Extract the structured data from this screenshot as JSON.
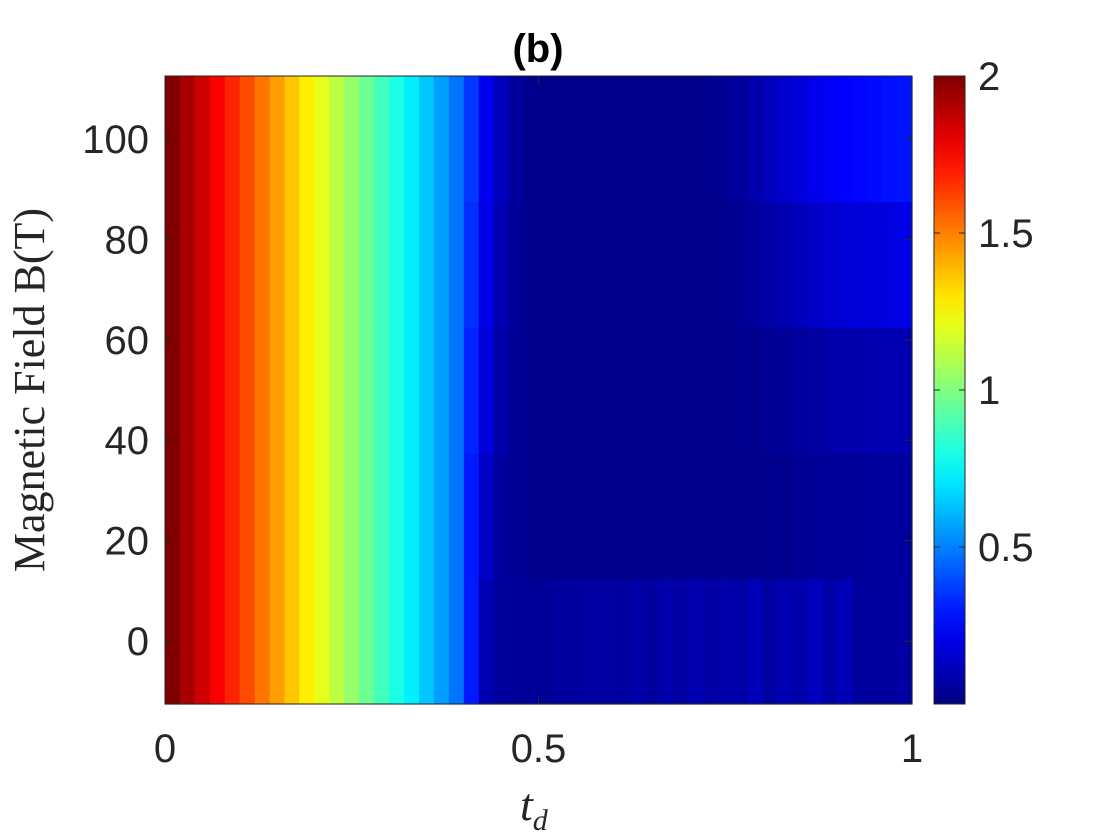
{
  "chart_data": {
    "type": "heatmap",
    "title": "(b)",
    "xlabel": "t_d",
    "xlabel_main": "t",
    "xlabel_sub": "d",
    "ylabel": "Magnetic Field B(T)",
    "xlim": [
      0,
      1
    ],
    "ylim": [
      -12.5,
      112.5
    ],
    "x_ticks": [
      0,
      0.5,
      1
    ],
    "x_tick_labels": [
      "0",
      "0.5",
      "1"
    ],
    "y_ticks": [
      0,
      20,
      40,
      60,
      80,
      100
    ],
    "y_tick_labels": [
      "0",
      "20",
      "40",
      "60",
      "80",
      "100"
    ],
    "colormap": "jet",
    "clim": [
      0,
      2
    ],
    "colorbar_ticks": [
      0.5,
      1,
      1.5,
      2
    ],
    "colorbar_tick_labels": [
      "0.5",
      "1",
      "1.5",
      "2"
    ],
    "y_rows": [
      0,
      25,
      50,
      75,
      100
    ],
    "x_columns_count": 50,
    "z_rows": [
      [
        2.0,
        1.92,
        1.84,
        1.76,
        1.68,
        1.6,
        1.52,
        1.44,
        1.36,
        1.28,
        1.2,
        1.12,
        1.04,
        0.96,
        0.88,
        0.8,
        0.72,
        0.64,
        0.56,
        0.48,
        0.3,
        0.1,
        0.06,
        0.05,
        0.05,
        0.05,
        0.06,
        0.06,
        0.07,
        0.07,
        0.06,
        0.08,
        0.06,
        0.09,
        0.07,
        0.1,
        0.07,
        0.09,
        0.08,
        0.11,
        0.07,
        0.1,
        0.09,
        0.12,
        0.08,
        0.11,
        0.06,
        0.06,
        0.06,
        0.07
      ],
      [
        2.0,
        1.92,
        1.84,
        1.76,
        1.68,
        1.6,
        1.52,
        1.44,
        1.36,
        1.28,
        1.2,
        1.12,
        1.04,
        0.96,
        0.88,
        0.8,
        0.72,
        0.64,
        0.56,
        0.48,
        0.3,
        0.14,
        0.06,
        0.04,
        0.03,
        0.02,
        0.02,
        0.02,
        0.02,
        0.02,
        0.02,
        0.02,
        0.02,
        0.02,
        0.02,
        0.02,
        0.02,
        0.02,
        0.02,
        0.02,
        0.03,
        0.03,
        0.04,
        0.04,
        0.05,
        0.05,
        0.05,
        0.06,
        0.06,
        0.06
      ],
      [
        2.0,
        1.92,
        1.84,
        1.76,
        1.68,
        1.6,
        1.52,
        1.44,
        1.36,
        1.28,
        1.2,
        1.12,
        1.04,
        0.96,
        0.88,
        0.8,
        0.72,
        0.64,
        0.56,
        0.48,
        0.32,
        0.18,
        0.08,
        0.04,
        0.03,
        0.02,
        0.02,
        0.02,
        0.02,
        0.02,
        0.02,
        0.02,
        0.02,
        0.02,
        0.02,
        0.02,
        0.02,
        0.02,
        0.03,
        0.03,
        0.04,
        0.05,
        0.06,
        0.07,
        0.08,
        0.09,
        0.09,
        0.1,
        0.1,
        0.1
      ],
      [
        2.0,
        1.92,
        1.84,
        1.76,
        1.68,
        1.6,
        1.52,
        1.44,
        1.36,
        1.28,
        1.2,
        1.12,
        1.04,
        0.96,
        0.88,
        0.8,
        0.72,
        0.64,
        0.56,
        0.48,
        0.34,
        0.2,
        0.1,
        0.05,
        0.03,
        0.02,
        0.02,
        0.02,
        0.02,
        0.02,
        0.02,
        0.02,
        0.02,
        0.02,
        0.02,
        0.02,
        0.02,
        0.03,
        0.04,
        0.06,
        0.08,
        0.1,
        0.12,
        0.14,
        0.16,
        0.17,
        0.18,
        0.18,
        0.19,
        0.2
      ],
      [
        2.0,
        1.92,
        1.84,
        1.76,
        1.68,
        1.6,
        1.52,
        1.44,
        1.36,
        1.28,
        1.2,
        1.12,
        1.04,
        0.96,
        0.88,
        0.8,
        0.72,
        0.64,
        0.56,
        0.48,
        0.36,
        0.22,
        0.12,
        0.06,
        0.03,
        0.02,
        0.02,
        0.02,
        0.02,
        0.02,
        0.02,
        0.02,
        0.02,
        0.02,
        0.02,
        0.02,
        0.03,
        0.04,
        0.06,
        0.09,
        0.12,
        0.15,
        0.18,
        0.21,
        0.23,
        0.25,
        0.26,
        0.27,
        0.28,
        0.29
      ]
    ]
  }
}
